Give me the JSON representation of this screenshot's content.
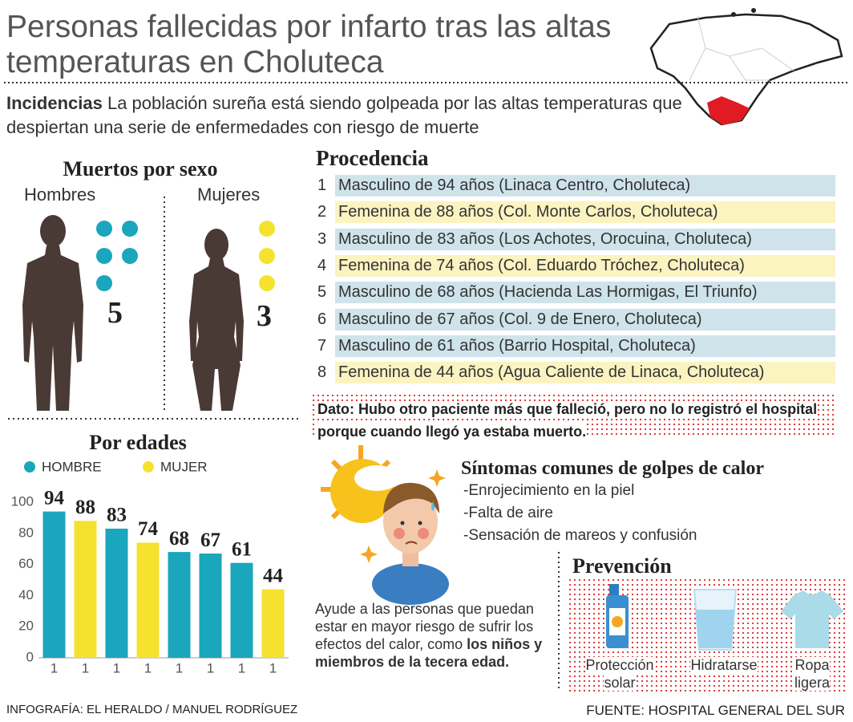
{
  "header": {
    "title_lines": [
      "Personas fallecidas por infarto tras las altas",
      "temperaturas en Choluteca"
    ]
  },
  "intro": {
    "lead": "Incidencias",
    "text": "La población sureña está siendo golpeada por las altas temperaturas que despiertan una serie de enfermedades con riesgo de muerte"
  },
  "by_sex": {
    "title": "Muertos por sexo",
    "groups": [
      {
        "label": "Hombres",
        "count": 5,
        "color": "#1aa6bd"
      },
      {
        "label": "Mujeres",
        "count": 3,
        "color": "#f5e22f"
      }
    ]
  },
  "origin": {
    "title": "Procedencia",
    "items": [
      {
        "n": 1,
        "text": "Masculino de 94 años (Linaca Centro, Choluteca)",
        "color": "#cfe3ea"
      },
      {
        "n": 2,
        "text": "Femenina de 88 años (Col. Monte Carlos, Choluteca)",
        "color": "#fbf3c0"
      },
      {
        "n": 3,
        "text": "Masculino de 83 años (Los Achotes, Orocuina, Choluteca)",
        "color": "#cfe3ea"
      },
      {
        "n": 4,
        "text": "Femenina de 74 años  (Col. Eduardo Tróchez, Choluteca)",
        "color": "#fbf3c0"
      },
      {
        "n": 5,
        "text": "Masculino de 68 años (Hacienda Las Hormigas, El Triunfo)",
        "color": "#cfe3ea"
      },
      {
        "n": 6,
        "text": "Masculino de 67 años (Col. 9 de Enero, Choluteca)",
        "color": "#cfe3ea"
      },
      {
        "n": 7,
        "text": "Masculino de 61 años (Barrio Hospital, Choluteca)",
        "color": "#cfe3ea"
      },
      {
        "n": 8,
        "text": "Femenina de 44 años (Agua Caliente de Linaca, Choluteca)",
        "color": "#fbf3c0"
      }
    ]
  },
  "note": "Dato: Hubo otro paciente más que falleció, pero no lo registró el hospital porque cuando llegó ya estaba muerto.",
  "symptoms": {
    "title": "Síntomas comunes de golpes de calor",
    "items": [
      "-Enrojecimiento en la piel",
      "-Falta de aire",
      "-Sensación de mareos y confusión"
    ]
  },
  "advice": {
    "text": "Ayude a las personas que puedan estar en mayor riesgo de sufrir los efectos del calor, como",
    "bold": "los niños y miembros de la tecera edad."
  },
  "prevention": {
    "title": "Prevención",
    "items": [
      "Protección solar",
      "Hidratarse",
      "Ropa ligera"
    ]
  },
  "footer": {
    "credit": "INFOGRAFÍA: EL HERALDO / MANUEL RODRÍGUEZ",
    "source": "FUENTE: HOSPITAL GENERAL DEL SUR"
  },
  "chart_data": {
    "type": "bar",
    "title": "Por edades",
    "categories": [
      "1",
      "1",
      "1",
      "1",
      "1",
      "1",
      "1",
      "1"
    ],
    "series": [
      {
        "name": "HOMBRE",
        "color": "#1aa6bd",
        "values": [
          94,
          null,
          83,
          null,
          68,
          67,
          61,
          null
        ]
      },
      {
        "name": "MUJER",
        "color": "#f5e22f",
        "values": [
          null,
          88,
          null,
          74,
          null,
          null,
          null,
          44
        ]
      }
    ],
    "ylim": [
      0,
      100
    ],
    "yticks": [
      0,
      20,
      40,
      60,
      80,
      100
    ],
    "grid": false
  }
}
